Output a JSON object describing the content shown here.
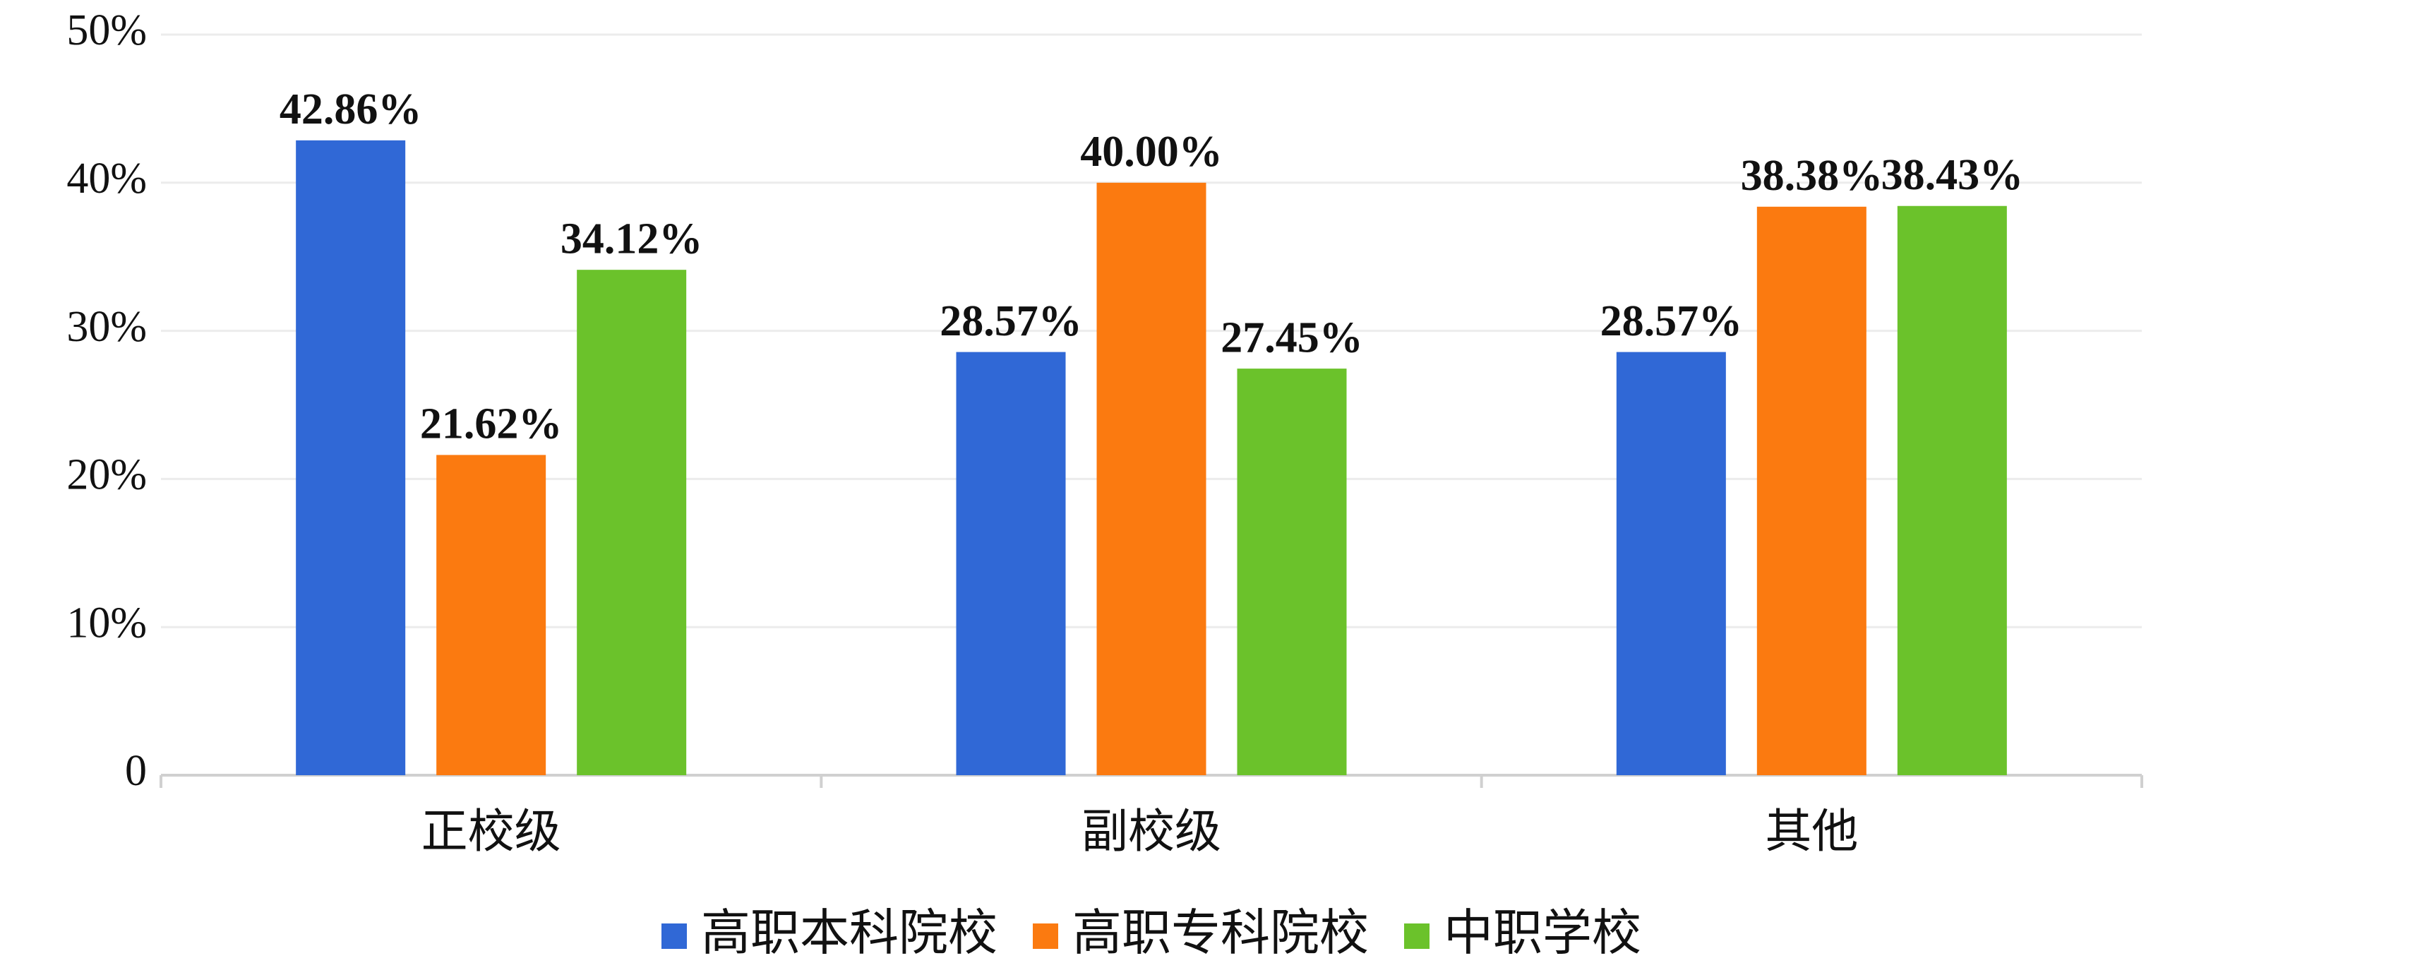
{
  "chart_data": {
    "type": "bar",
    "categories": [
      "正校级",
      "副校级",
      "其他"
    ],
    "series": [
      {
        "name": "高职本科院校",
        "color": "#3068d6",
        "values": [
          42.86,
          28.57,
          28.57
        ],
        "value_labels": [
          "42.86%",
          "28.57%",
          "28.57%"
        ]
      },
      {
        "name": "高职专科院校",
        "color": "#fb7a10",
        "values": [
          21.62,
          40.0,
          38.38
        ],
        "value_labels": [
          "21.62%",
          "40.00%",
          "38.38%"
        ]
      },
      {
        "name": "中职学校",
        "color": "#6bc22b",
        "values": [
          34.12,
          27.45,
          38.43
        ],
        "value_labels": [
          "34.12%",
          "27.45%",
          "38.43%"
        ]
      }
    ],
    "ylim": [
      0,
      50
    ],
    "yticks": [
      0,
      {
        "value": 10,
        "label": "10%"
      },
      {
        "value": 20,
        "label": "20%"
      },
      {
        "value": 30,
        "label": "30%"
      },
      {
        "value": 40,
        "label": "40%"
      },
      {
        "value": 50,
        "label": "50%"
      }
    ],
    "grid": true,
    "legend": "bottom"
  }
}
